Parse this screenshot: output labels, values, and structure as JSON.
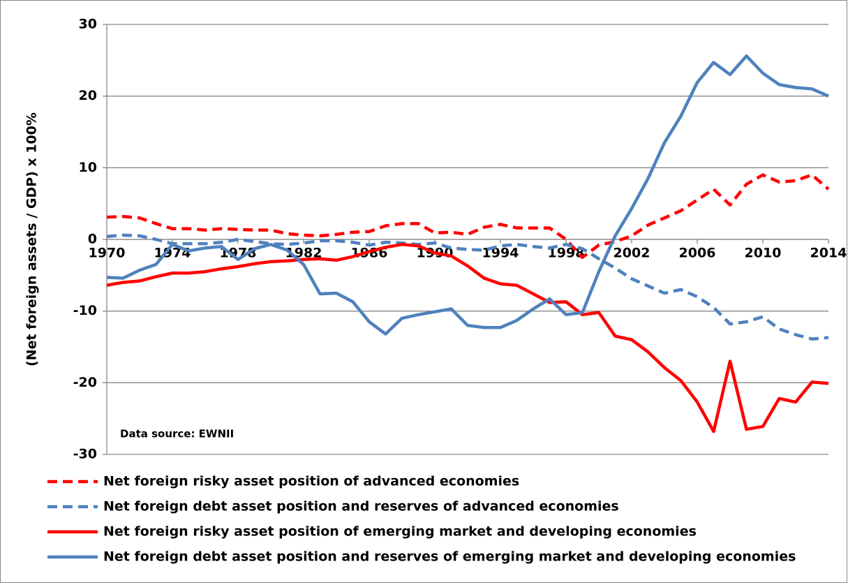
{
  "chart_data": {
    "type": "line",
    "y_label": "(Net foreign assets / GDP) x 100%",
    "annotation": "Data source: EWNII",
    "x": [
      1970,
      1971,
      1972,
      1973,
      1974,
      1975,
      1976,
      1977,
      1978,
      1979,
      1980,
      1981,
      1982,
      1983,
      1984,
      1985,
      1986,
      1987,
      1988,
      1989,
      1990,
      1991,
      1992,
      1993,
      1994,
      1995,
      1996,
      1997,
      1998,
      1999,
      2000,
      2001,
      2002,
      2003,
      2004,
      2005,
      2006,
      2007,
      2008,
      2009,
      2010,
      2011,
      2012,
      2013,
      2014
    ],
    "xlim": [
      1970,
      2014
    ],
    "xticks": [
      1970,
      1974,
      1978,
      1982,
      1986,
      1990,
      1994,
      1998,
      2002,
      2006,
      2010,
      2014
    ],
    "ylim": [
      -30,
      30
    ],
    "yticks": [
      -30,
      -20,
      -10,
      0,
      10,
      20,
      30
    ],
    "grid": true,
    "series": [
      {
        "name": "Net foreign risky asset position of advanced economies",
        "color": "#ff0000",
        "dashed": true,
        "values": [
          3.1,
          3.2,
          3.0,
          2.2,
          1.5,
          1.5,
          1.3,
          1.5,
          1.4,
          1.3,
          1.3,
          0.8,
          0.6,
          0.5,
          0.7,
          1.0,
          1.1,
          1.9,
          2.2,
          2.2,
          0.9,
          1.0,
          0.7,
          1.7,
          2.1,
          1.6,
          1.6,
          1.6,
          0,
          -2.5,
          -0.8,
          -0.3,
          0.5,
          2.0,
          3.0,
          4.0,
          5.5,
          7.0,
          4.8,
          7.7,
          9.0,
          8.0,
          8.2,
          9.0,
          7.0
        ]
      },
      {
        "name": "Net foreign debt asset position and reserves of advanced economies",
        "color": "#4f81bd",
        "dashed": true,
        "values": [
          0.4,
          0.6,
          0.5,
          0,
          -0.6,
          -0.6,
          -0.6,
          -0.4,
          0,
          -0.3,
          -0.6,
          -0.7,
          -0.5,
          -0.2,
          -0.2,
          -0.4,
          -0.8,
          -0.4,
          -0.5,
          -0.7,
          -0.5,
          -1.2,
          -1.4,
          -1.5,
          -0.9,
          -0.7,
          -1.0,
          -1.2,
          -0.7,
          -1.3,
          -2.7,
          -4.0,
          -5.5,
          -6.5,
          -7.5,
          -7.0,
          -8.0,
          -9.5,
          -11.8,
          -11.5,
          -10.8,
          -12.5,
          -13.3,
          -13.9,
          -13.7
        ]
      },
      {
        "name": "Net foreign risky asset position of emerging market and developing economies",
        "color": "#ff0000",
        "dashed": false,
        "values": [
          -6.4,
          -6.0,
          -5.8,
          -5.2,
          -4.7,
          -4.7,
          -4.5,
          -4.1,
          -3.8,
          -3.4,
          -3.1,
          -3.0,
          -2.8,
          -2.7,
          -2.9,
          -2.4,
          -1.7,
          -1.1,
          -0.7,
          -0.9,
          -1.9,
          -2.3,
          -3.7,
          -5.4,
          -6.2,
          -6.4,
          -7.6,
          -8.8,
          -8.7,
          -10.5,
          -10.2,
          -13.5,
          -14.0,
          -15.7,
          -17.9,
          -19.7,
          -22.7,
          -26.8,
          -17.0,
          -26.5,
          -26.1,
          -22.2,
          -22.7,
          -19.9,
          -20.1
        ]
      },
      {
        "name": "Net foreign debt asset position and reserves of emerging market and developing economies",
        "color": "#4f81bd",
        "dashed": false,
        "values": [
          -5.3,
          -5.4,
          -4.3,
          -3.5,
          -0.7,
          -1.6,
          -1.2,
          -1.0,
          -2.8,
          -1.3,
          -0.7,
          -1.5,
          -3.5,
          -7.6,
          -7.5,
          -8.7,
          -11.5,
          -13.2,
          -11.0,
          -10.5,
          -10.1,
          -9.7,
          -12.0,
          -12.3,
          -12.3,
          -11.3,
          -9.7,
          -8.3,
          -10.5,
          -10.2,
          -4.5,
          0.5,
          4.3,
          8.5,
          13.5,
          17.2,
          21.9,
          24.7,
          23.0,
          25.6,
          23.2,
          21.6,
          21.2,
          21.0,
          20.0
        ]
      }
    ]
  }
}
